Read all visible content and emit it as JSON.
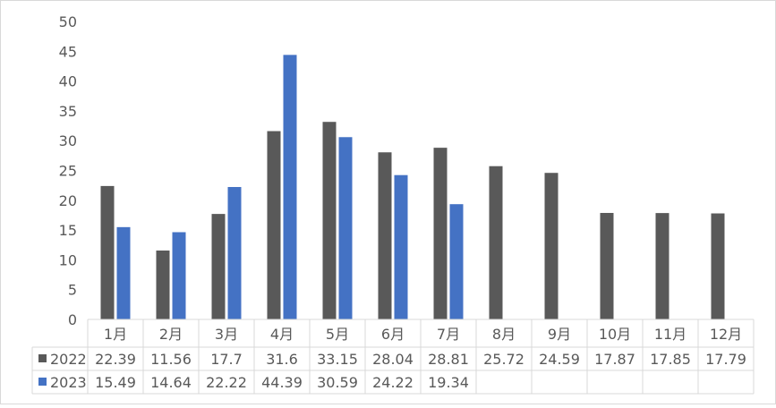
{
  "chart_data": {
    "type": "bar",
    "categories": [
      "1月",
      "2月",
      "3月",
      "4月",
      "5月",
      "6月",
      "7月",
      "8月",
      "9月",
      "10月",
      "11月",
      "12月"
    ],
    "series": [
      {
        "name": "2022",
        "color": "#595959",
        "values": [
          22.39,
          11.56,
          17.7,
          31.6,
          33.15,
          28.04,
          28.81,
          25.72,
          24.59,
          17.87,
          17.85,
          17.79
        ]
      },
      {
        "name": "2023",
        "color": "#4472c4",
        "values": [
          15.49,
          14.64,
          22.22,
          44.39,
          30.59,
          24.22,
          19.34,
          null,
          null,
          null,
          null,
          null
        ]
      }
    ],
    "title": "",
    "xlabel": "",
    "ylabel": "",
    "ylim": [
      0,
      50
    ],
    "yticks": [
      "0",
      "5",
      "10",
      "15",
      "20",
      "25",
      "30",
      "35",
      "40",
      "45",
      "50"
    ],
    "grid": false,
    "legend": "data-table"
  }
}
